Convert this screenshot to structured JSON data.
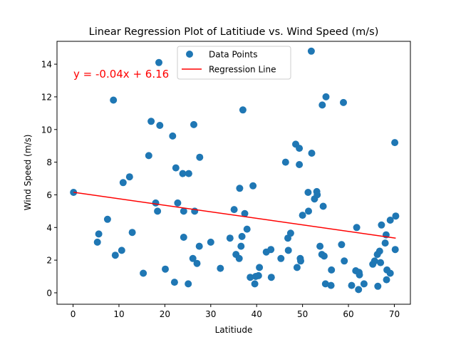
{
  "chart_data": {
    "type": "scatter",
    "title": "Linear Regression Plot of Latitiude vs. Wind Speed (m/s)",
    "xlabel": "Latitiude",
    "ylabel": "Wind Speed (m/s)",
    "xlim": [
      -3.5,
      73.5
    ],
    "ylim": [
      -0.7,
      15.4
    ],
    "xticks": [
      0,
      10,
      20,
      30,
      40,
      50,
      60,
      70
    ],
    "yticks": [
      0,
      2,
      4,
      6,
      8,
      10,
      12,
      14
    ],
    "grid": false,
    "legend_placement": "upper center",
    "legend": [
      "Data Points",
      "Regression Line"
    ],
    "annotation": "y = -0.04x + 6.16",
    "colors": {
      "points": "#1f77b4",
      "line": "#ff0000",
      "annotation": "#ff0000"
    },
    "regression": {
      "slope": -0.04,
      "intercept": 6.16,
      "x_range": [
        0.1,
        70.3
      ]
    },
    "series": [
      {
        "name": "Data Points",
        "points": [
          [
            0.1,
            6.15
          ],
          [
            5.3,
            3.1
          ],
          [
            5.6,
            3.6
          ],
          [
            7.5,
            4.5
          ],
          [
            8.8,
            11.8
          ],
          [
            9.2,
            2.3
          ],
          [
            10.6,
            2.6
          ],
          [
            10.9,
            6.75
          ],
          [
            12.3,
            7.1
          ],
          [
            12.9,
            3.7
          ],
          [
            15.3,
            1.2
          ],
          [
            16.5,
            8.4
          ],
          [
            17.0,
            10.5
          ],
          [
            18.0,
            5.5
          ],
          [
            18.4,
            5.0
          ],
          [
            18.7,
            14.1
          ],
          [
            18.9,
            10.25
          ],
          [
            20.1,
            1.45
          ],
          [
            21.7,
            9.6
          ],
          [
            22.1,
            0.65
          ],
          [
            22.4,
            7.65
          ],
          [
            22.8,
            5.5
          ],
          [
            23.9,
            7.3
          ],
          [
            24.1,
            3.4
          ],
          [
            24.1,
            5.0
          ],
          [
            25.1,
            0.55
          ],
          [
            25.2,
            7.3
          ],
          [
            26.1,
            2.1
          ],
          [
            26.3,
            10.3
          ],
          [
            26.5,
            5.0
          ],
          [
            27.0,
            1.8
          ],
          [
            27.5,
            2.85
          ],
          [
            27.6,
            8.3
          ],
          [
            30.0,
            3.1
          ],
          [
            32.1,
            1.5
          ],
          [
            34.2,
            3.35
          ],
          [
            35.1,
            5.1
          ],
          [
            35.5,
            2.35
          ],
          [
            36.2,
            2.1
          ],
          [
            36.3,
            6.4
          ],
          [
            36.6,
            2.85
          ],
          [
            36.8,
            3.45
          ],
          [
            37.0,
            11.2
          ],
          [
            37.4,
            4.85
          ],
          [
            37.9,
            3.9
          ],
          [
            38.6,
            0.95
          ],
          [
            39.2,
            6.55
          ],
          [
            39.6,
            0.55
          ],
          [
            39.8,
            1.0
          ],
          [
            40.4,
            1.05
          ],
          [
            40.6,
            1.55
          ],
          [
            42.1,
            2.5
          ],
          [
            43.1,
            2.65
          ],
          [
            43.2,
            0.95
          ],
          [
            45.3,
            2.1
          ],
          [
            46.3,
            8.0
          ],
          [
            46.8,
            3.35
          ],
          [
            46.9,
            2.6
          ],
          [
            47.4,
            3.65
          ],
          [
            48.5,
            9.1
          ],
          [
            48.8,
            1.55
          ],
          [
            49.3,
            8.85
          ],
          [
            49.3,
            7.85
          ],
          [
            49.5,
            2.1
          ],
          [
            49.6,
            1.95
          ],
          [
            50.0,
            4.75
          ],
          [
            51.2,
            6.15
          ],
          [
            51.3,
            5.0
          ],
          [
            51.9,
            14.8
          ],
          [
            52.0,
            8.55
          ],
          [
            52.6,
            5.75
          ],
          [
            53.1,
            6.2
          ],
          [
            53.2,
            6.0
          ],
          [
            53.8,
            2.85
          ],
          [
            54.2,
            2.35
          ],
          [
            54.3,
            11.5
          ],
          [
            54.5,
            5.3
          ],
          [
            54.7,
            2.25
          ],
          [
            55.0,
            0.55
          ],
          [
            55.1,
            12.0
          ],
          [
            56.2,
            0.45
          ],
          [
            56.3,
            1.4
          ],
          [
            58.5,
            2.95
          ],
          [
            58.9,
            11.65
          ],
          [
            59.1,
            1.95
          ],
          [
            60.7,
            0.45
          ],
          [
            61.6,
            1.35
          ],
          [
            61.8,
            4.0
          ],
          [
            62.2,
            0.2
          ],
          [
            62.3,
            1.25
          ],
          [
            62.4,
            1.1
          ],
          [
            63.4,
            0.55
          ],
          [
            65.3,
            1.75
          ],
          [
            65.7,
            1.95
          ],
          [
            66.3,
            2.35
          ],
          [
            66.4,
            0.4
          ],
          [
            66.8,
            2.55
          ],
          [
            67.0,
            1.85
          ],
          [
            67.2,
            4.15
          ],
          [
            68.0,
            3.05
          ],
          [
            68.2,
            3.55
          ],
          [
            68.3,
            0.8
          ],
          [
            68.4,
            1.4
          ],
          [
            69.1,
            4.45
          ],
          [
            69.1,
            1.2
          ],
          [
            70.1,
            9.2
          ],
          [
            70.2,
            2.65
          ],
          [
            70.3,
            4.7
          ]
        ]
      }
    ]
  }
}
